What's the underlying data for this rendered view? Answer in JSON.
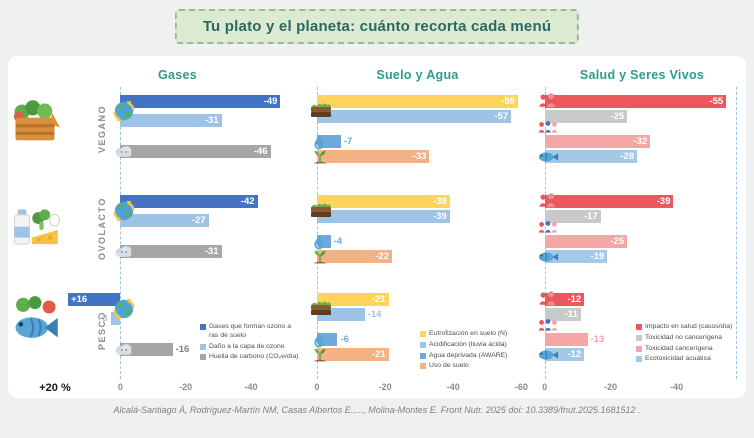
{
  "title": "Tu plato y el planeta: cuánto recorta cada menú",
  "citation": "Alcalá-Santiago Á, Rodríguez-Martín NM, Casas Albertos E.,..., Molina-Montes E. Front Nutr. 2025 doi: 10.3389/fnut.2025.1681512 .",
  "food_icons": [
    "vegetable-crate-icon",
    "dairy-eggs-icon",
    "fish-produce-icon"
  ],
  "colors": {
    "title_bg": "#dcead2",
    "title_text": "#2a6862",
    "title_border": "#9db79a",
    "panel_title": "#2e9c87",
    "dashed_line": "#9cc2e5",
    "background": "#eff1f1",
    "card": "#ffffff"
  },
  "chart_data": {
    "type": "bar",
    "orientation": "horizontal",
    "unit": "%",
    "categories": [
      "VEGANO",
      "OVOLACTO",
      "PESCO"
    ],
    "panels": [
      {
        "title": "Gases",
        "axis": {
          "max": 20,
          "min": -55,
          "ticks": [
            {
              "value": 20,
              "label": "+20 %"
            },
            {
              "value": 0,
              "label": "0"
            },
            {
              "value": -20,
              "label": "-20"
            },
            {
              "value": -40,
              "label": "-40"
            }
          ]
        },
        "icons": [
          {
            "name": "globe-ozone-icon",
            "rows": [
              0,
              1
            ]
          },
          {
            "name": "carbon-cloud-icon",
            "rows": [
              2
            ]
          }
        ],
        "series": [
          {
            "name": "Gases que forman ozono a ras de suelo",
            "color": "#4472c4",
            "values": [
              {
                "v": -49
              },
              {
                "v": -42
              },
              {
                "v": 16
              }
            ]
          },
          {
            "name": "Daño a la capa de ozono",
            "color": "#9dc3e6",
            "values": [
              {
                "v": -31
              },
              {
                "v": -27
              },
              {
                "v": 3,
                "out": true
              }
            ]
          },
          {
            "name": "Huella de carbono (CO₂e/día)",
            "color": "#a6a6a6",
            "label_color": "#7f7f7f",
            "values": [
              {
                "v": -46
              },
              {
                "v": -31
              },
              {
                "v": -16,
                "out": true
              }
            ]
          }
        ]
      },
      {
        "title": "Suelo y Agua",
        "axis": {
          "max": 5,
          "min": -64,
          "ticks": [
            {
              "value": 0,
              "label": "0"
            },
            {
              "value": -20,
              "label": "-20"
            },
            {
              "value": -40,
              "label": "-40"
            },
            {
              "value": -60,
              "label": "-60"
            }
          ]
        },
        "icons": [
          {
            "name": "soil-layers-icon",
            "rows": [
              0,
              1
            ]
          },
          {
            "name": "water-drop-icon",
            "rows": [
              2
            ]
          },
          {
            "name": "sprout-icon",
            "rows": [
              3
            ]
          }
        ],
        "series": [
          {
            "name": "Eutrofización en suelo (N)",
            "color": "#fed45c",
            "values": [
              {
                "v": -59
              },
              {
                "v": -39
              },
              {
                "v": -21
              }
            ]
          },
          {
            "name": "Acidificación (lluvia ácida)",
            "color": "#9dc3e6",
            "values": [
              {
                "v": -57
              },
              {
                "v": -39
              },
              {
                "v": -14,
                "out": true
              }
            ]
          },
          {
            "name": "Agua deprivada (AWARE)",
            "color": "#6fa8dc",
            "values": [
              {
                "v": -7,
                "out": true
              },
              {
                "v": -4,
                "out": true
              },
              {
                "v": -6,
                "out": true
              }
            ]
          },
          {
            "name": "Uso de suelo",
            "color": "#f4b183",
            "values": [
              {
                "v": -33
              },
              {
                "v": -22
              },
              {
                "v": -21
              }
            ]
          }
        ]
      },
      {
        "title": "Salud y Seres Vivos",
        "axis": {
          "max": 2,
          "min": -61,
          "ticks": [
            {
              "value": 0,
              "label": "0"
            },
            {
              "value": -20,
              "label": "-20"
            },
            {
              "value": -40,
              "label": "-40"
            }
          ]
        },
        "icons": [
          {
            "name": "people-health-icon",
            "rows": [
              0
            ]
          },
          {
            "name": "people-toxicity-icon",
            "rows": [
              1,
              2
            ]
          },
          {
            "name": "fish-ecotoxicity-icon",
            "rows": [
              3
            ]
          }
        ],
        "series": [
          {
            "name": "Impacto en salud (casos/día)",
            "color": "#e9595e",
            "values": [
              {
                "v": -55
              },
              {
                "v": -39
              },
              {
                "v": -12
              }
            ]
          },
          {
            "name": "Toxicidad no cancerígena",
            "color": "#c9c9c9",
            "label_color": "#9a9a9a",
            "values": [
              {
                "v": -25
              },
              {
                "v": -17
              },
              {
                "v": -11
              }
            ]
          },
          {
            "name": "Toxicidad cancerígena",
            "color": "#f5a6a6",
            "values": [
              {
                "v": -32
              },
              {
                "v": -25
              },
              {
                "v": -13,
                "out": true
              }
            ]
          },
          {
            "name": "Ecotoxicidad acuática",
            "color": "#a5c8e8",
            "values": [
              {
                "v": -28
              },
              {
                "v": -19
              },
              {
                "v": -12
              }
            ]
          }
        ]
      }
    ]
  }
}
